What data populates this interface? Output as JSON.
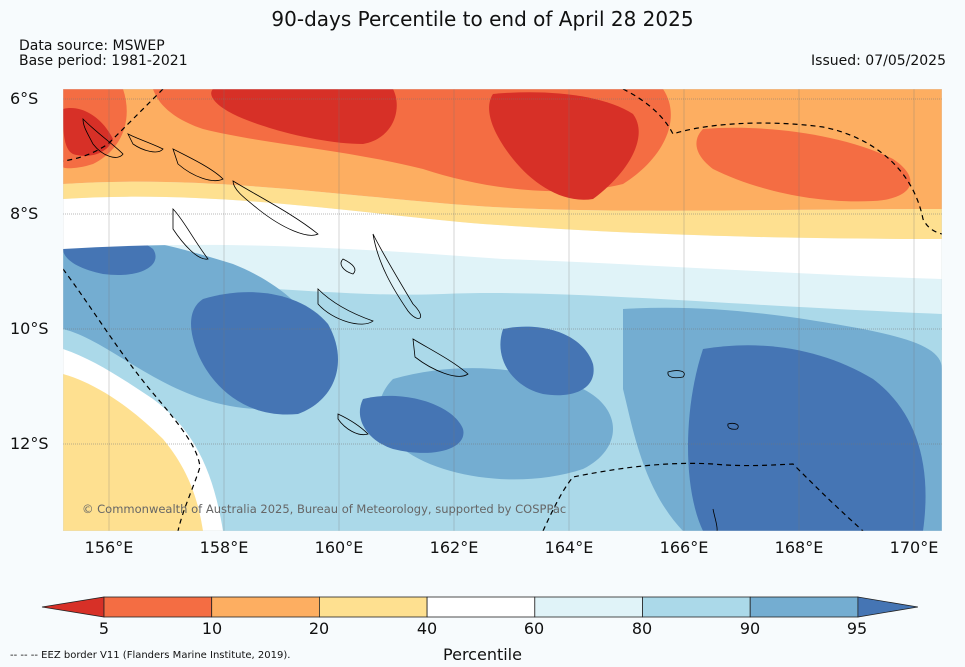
{
  "title": "90-days Percentile to end of April 28 2025",
  "data_source": "Data source: MSWEP",
  "base_period": "Base period: 1981-2021",
  "issued": "Issued: 07/05/2025",
  "lat_labels": [
    "6°S",
    "8°S",
    "10°S",
    "12°S"
  ],
  "lon_labels": [
    "156°E",
    "158°E",
    "160°E",
    "162°E",
    "164°E",
    "166°E",
    "168°E",
    "170°E"
  ],
  "copyright": "© Commonwealth of Australia 2025, Bureau of Meteorology, supported by COSPPac",
  "colorbar": {
    "label": "Percentile",
    "ticks": [
      "5",
      "10",
      "20",
      "40",
      "60",
      "80",
      "90",
      "95"
    ],
    "colors": [
      "#d73027",
      "#f46d43",
      "#fdae61",
      "#fee090",
      "#ffffff",
      "#e0f3f8",
      "#abd9e9",
      "#74add1",
      "#4575b4"
    ]
  },
  "eez_note": "--  --  -- EEZ border V11 (Flanders Marine Institute, 2019)."
}
